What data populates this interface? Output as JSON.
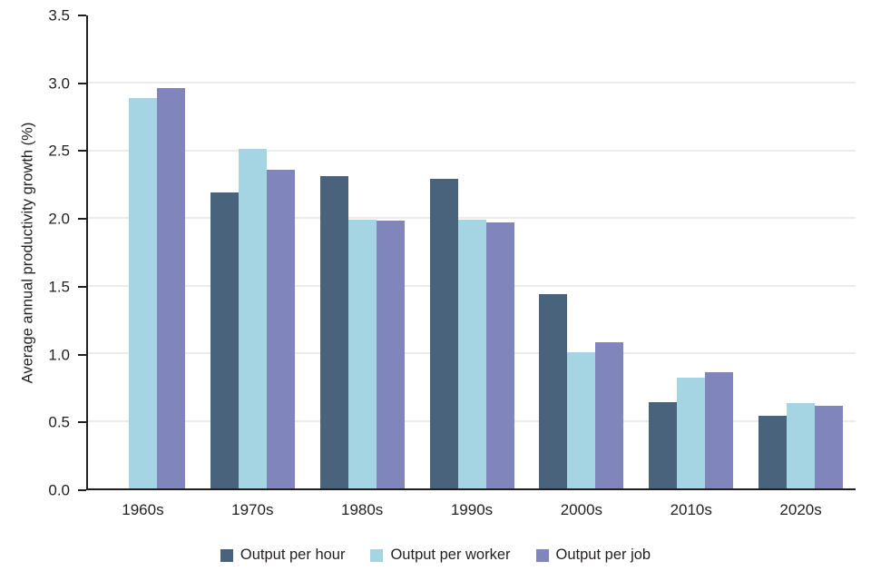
{
  "chart_data": {
    "type": "bar",
    "title": "",
    "xlabel": "",
    "ylabel": "Average annual productivity growth (%)",
    "ylim": [
      0,
      3.5
    ],
    "ytick_step": 0.5,
    "yticks": [
      "0.0",
      "0.5",
      "1.0",
      "1.5",
      "2.0",
      "2.5",
      "3.0",
      "3.5"
    ],
    "grid": true,
    "grid_color": "#d8d8d8",
    "axis_color": "#231f20",
    "text_color": "#231f20",
    "legend_position": "bottom",
    "categories": [
      "1960s",
      "1970s",
      "1980s",
      "1990s",
      "2000s",
      "2010s",
      "2020s"
    ],
    "series": [
      {
        "name": "Output per hour",
        "color": "#4a637d",
        "values": [
          null,
          2.19,
          2.31,
          2.29,
          1.44,
          0.64,
          0.54
        ]
      },
      {
        "name": "Output per worker",
        "color": "#a5d5e2",
        "values": [
          2.89,
          2.51,
          1.99,
          1.99,
          1.01,
          0.82,
          0.63
        ]
      },
      {
        "name": "Output per job",
        "color": "#8085bb",
        "values": [
          2.96,
          2.36,
          1.98,
          1.97,
          1.08,
          0.86,
          0.61
        ]
      }
    ]
  }
}
